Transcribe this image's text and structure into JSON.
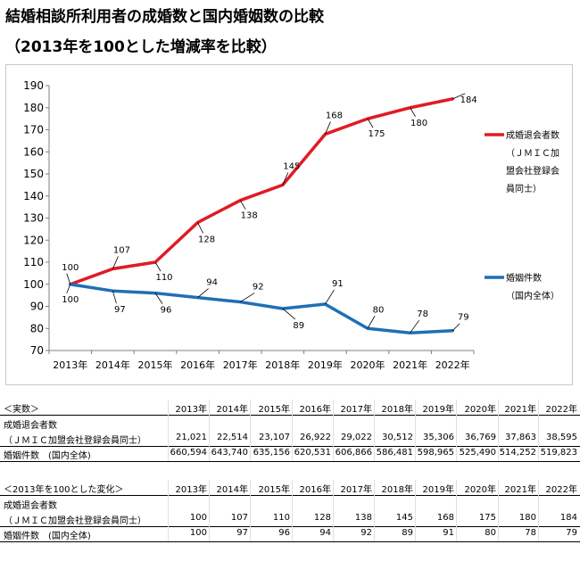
{
  "title": {
    "line1": "結婚相談所利用者の成婚数と国内婚姻数の比較",
    "line2": "（2013年を100とした増減率を比較）"
  },
  "chart_data": {
    "type": "line",
    "categories": [
      "2013年",
      "2014年",
      "2015年",
      "2016年",
      "2017年",
      "2018年",
      "2019年",
      "2020年",
      "2021年",
      "2022年"
    ],
    "ylim": [
      70,
      190
    ],
    "yticks": [
      70,
      80,
      90,
      100,
      110,
      120,
      130,
      140,
      150,
      160,
      170,
      180,
      190
    ],
    "grid": false,
    "legend_position": "right",
    "series": [
      {
        "name": "成婚退会者数",
        "name_sub": [
          "（ＪＭＩＣ加",
          "盟会社登録会",
          "員同士）"
        ],
        "color": "#e01b24",
        "values": [
          100,
          107,
          110,
          128,
          138,
          145,
          168,
          175,
          180,
          184
        ],
        "labels": [
          "100",
          "107",
          "110",
          "128",
          "138",
          "145",
          "168",
          "175",
          "180",
          "184"
        ]
      },
      {
        "name": "婚姻件数",
        "name_sub": [
          "（国内全体）"
        ],
        "color": "#1f6fb5",
        "values": [
          100,
          97,
          96,
          94,
          92,
          89,
          91,
          80,
          78,
          79
        ],
        "labels": [
          "100",
          "97",
          "96",
          "94",
          "92",
          "89",
          "91",
          "80",
          "78",
          "79"
        ]
      }
    ]
  },
  "table1": {
    "header": "＜実数＞",
    "years": [
      "2013年",
      "2014年",
      "2015年",
      "2016年",
      "2017年",
      "2018年",
      "2019年",
      "2020年",
      "2021年",
      "2022年"
    ],
    "rows": [
      {
        "label": "成婚退会者数",
        "values": []
      },
      {
        "label": "（ＪＭＩＣ加盟会社登録会員同士）",
        "values": [
          "21,021",
          "22,514",
          "23,107",
          "26,922",
          "29,022",
          "30,512",
          "35,306",
          "36,769",
          "37,863",
          "38,595"
        ]
      },
      {
        "label": "婚姻件数　(国内全体)",
        "values": [
          "660,594",
          "643,740",
          "635,156",
          "620,531",
          "606,866",
          "586,481",
          "598,965",
          "525,490",
          "514,252",
          "519,823"
        ]
      }
    ]
  },
  "table2": {
    "header": "＜2013年を100とした変化＞",
    "years": [
      "2013年",
      "2014年",
      "2015年",
      "2016年",
      "2017年",
      "2018年",
      "2019年",
      "2020年",
      "2021年",
      "2022年"
    ],
    "rows": [
      {
        "label": "成婚退会者数",
        "values": []
      },
      {
        "label": "（ＪＭＩＣ加盟会社登録会員同士）",
        "values": [
          "100",
          "107",
          "110",
          "128",
          "138",
          "145",
          "168",
          "175",
          "180",
          "184"
        ]
      },
      {
        "label": "婚姻件数　(国内全体)",
        "values": [
          "100",
          "97",
          "96",
          "94",
          "92",
          "89",
          "91",
          "80",
          "78",
          "79"
        ]
      }
    ]
  }
}
